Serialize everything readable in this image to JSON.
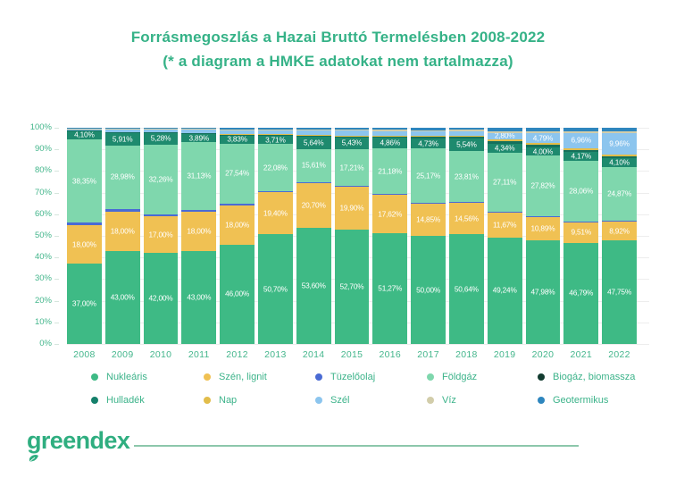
{
  "header": {
    "title": "Forrásmegoszlás a Hazai Bruttó Termelésben 2008-2022",
    "subtitle": "(* a diagram a HMKE adatokat nem tartalmazza)"
  },
  "brand": {
    "logo_text": "greendex"
  },
  "colors": {
    "title_green": "#35b287",
    "axis_green": "#44b68c",
    "legend_text_green": "#3cb38a",
    "gridline": "#ededed",
    "logo_green": "#2fae80",
    "footer_line": "#8cc7ab",
    "bar_label_text": "#ffffff"
  },
  "chart_data": {
    "type": "bar",
    "variant": "100-percent-stacked-column",
    "title": "Forrásmegoszlás a Hazai Bruttó Termelésben 2008-2022",
    "subtitle": "(* a diagram a HMKE adatokat nem tartalmazza)",
    "xlabel": "",
    "ylabel": "",
    "ylim": [
      0,
      100
    ],
    "ytick_labels": [
      "0%",
      "10%",
      "20%",
      "30%",
      "40%",
      "50%",
      "60%",
      "70%",
      "80%",
      "90%",
      "100%"
    ],
    "grid": "horizontal",
    "legend_position": "bottom",
    "categories": [
      "2008",
      "2009",
      "2010",
      "2011",
      "2012",
      "2013",
      "2014",
      "2015",
      "2016",
      "2017",
      "2018",
      "2019",
      "2020",
      "2021",
      "2022"
    ],
    "series": [
      {
        "name": "Nukleáris",
        "color": "#3eba85",
        "values": [
          37.0,
          43.0,
          42.0,
          43.0,
          46.0,
          50.7,
          53.6,
          52.7,
          51.27,
          50.0,
          50.64,
          49.24,
          47.98,
          46.79,
          47.75
        ],
        "data_labels": [
          "37,00%",
          "43,00%",
          "42,00%",
          "43,00%",
          "46,00%",
          "50,70%",
          "53,60%",
          "52,70%",
          "51,27%",
          "50,00%",
          "50,64%",
          "49,24%",
          "47,98%",
          "46,79%",
          "47,75%"
        ]
      },
      {
        "name": "Szén, lignit",
        "color": "#f0c153",
        "values": [
          18.0,
          18.0,
          17.0,
          18.0,
          18.0,
          19.4,
          20.7,
          19.9,
          17.62,
          14.85,
          14.56,
          11.67,
          10.89,
          9.51,
          8.92
        ],
        "data_labels": [
          "18,00%",
          "18,00%",
          "17,00%",
          "18,00%",
          "18,00%",
          "19,40%",
          "20,70%",
          "19,90%",
          "17,62%",
          "14,85%",
          "14,56%",
          "11,67%",
          "10,89%",
          "9,51%",
          "8,92%"
        ]
      },
      {
        "name": "Tüzelőolaj",
        "color": "#4a6bd4",
        "values_estimated": true,
        "values": [
          1.2,
          1.6,
          1.1,
          1.1,
          1.0,
          0.4,
          0.35,
          0.35,
          0.35,
          0.35,
          0.35,
          0.35,
          0.35,
          0.35,
          0.35
        ],
        "data_labels": [
          null,
          null,
          null,
          null,
          null,
          null,
          null,
          null,
          null,
          null,
          null,
          null,
          null,
          null,
          null
        ]
      },
      {
        "name": "Földgáz",
        "color": "#7fd7ad",
        "values": [
          38.35,
          28.98,
          32.26,
          31.13,
          27.54,
          22.08,
          15.61,
          17.21,
          21.18,
          25.17,
          23.81,
          27.11,
          27.82,
          28.06,
          24.87
        ],
        "data_labels": [
          "38,35%",
          "28,98%",
          "32,26%",
          "31,13%",
          "27,54%",
          "22,08%",
          "15,61%",
          "17,21%",
          "21,18%",
          "25,17%",
          "23,81%",
          "27,11%",
          "27,82%",
          "28,06%",
          "24,87%"
        ]
      },
      {
        "name": "Biogáz, biomassza",
        "color": "#1e8a6e",
        "legend_color": "#123c30",
        "values": [
          4.1,
          5.91,
          5.28,
          3.89,
          3.83,
          3.71,
          5.64,
          5.43,
          4.86,
          4.73,
          5.54,
          4.34,
          4.0,
          4.17,
          4.1
        ],
        "data_labels": [
          "4,10%",
          "5,91%",
          "5,28%",
          "3,89%",
          "3,83%",
          "3,71%",
          "5,64%",
          "5,43%",
          "4,86%",
          "4,73%",
          "5,54%",
          "4,34%",
          "4,00%",
          "4,17%",
          "4,10%"
        ]
      },
      {
        "name": "Hulladék",
        "color": "#15705c",
        "legend_color": "#15806b",
        "values_estimated": true,
        "values": [
          0.3,
          0.45,
          0.45,
          0.5,
          0.55,
          0.6,
          0.65,
          0.7,
          0.75,
          0.8,
          0.8,
          1.0,
          1.0,
          1.0,
          1.0
        ],
        "data_labels": [
          null,
          null,
          null,
          null,
          null,
          null,
          null,
          null,
          null,
          null,
          null,
          null,
          null,
          null,
          null
        ]
      },
      {
        "name": "Nap",
        "color": "#e2bd4a",
        "values_estimated": true,
        "values": [
          0.0,
          0.0,
          0.0,
          0.0,
          0.05,
          0.1,
          0.15,
          0.2,
          0.3,
          0.45,
          0.7,
          0.99,
          0.8,
          0.8,
          0.8
        ],
        "data_labels": [
          null,
          null,
          null,
          null,
          null,
          null,
          null,
          null,
          null,
          null,
          null,
          null,
          null,
          null,
          null
        ]
      },
      {
        "name": "Szél",
        "color": "#8cc5ee",
        "values_estimated_before_2019": true,
        "values": [
          0.45,
          1.2,
          1.05,
          1.5,
          1.9,
          1.9,
          2.2,
          2.3,
          2.25,
          2.2,
          2.1,
          2.8,
          4.79,
          6.96,
          9.96
        ],
        "data_labels": [
          null,
          null,
          null,
          null,
          null,
          null,
          null,
          null,
          null,
          null,
          null,
          "2,80%",
          "4,79%",
          "6,96%",
          "9,96%"
        ]
      },
      {
        "name": "Víz",
        "color": "#d2cdaa",
        "values_estimated": true,
        "values": [
          0.3,
          0.4,
          0.4,
          0.4,
          0.5,
          0.5,
          0.4,
          0.4,
          0.42,
          0.45,
          0.5,
          1.0,
          0.9,
          0.9,
          0.8
        ],
        "data_labels": [
          null,
          null,
          null,
          null,
          null,
          null,
          null,
          null,
          null,
          null,
          null,
          null,
          null,
          null,
          null
        ]
      },
      {
        "name": "Geotermikus",
        "color": "#2e86be",
        "values_estimated": true,
        "values": [
          0.3,
          0.46,
          0.46,
          0.48,
          0.63,
          0.61,
          0.7,
          0.81,
          1.0,
          1.0,
          1.0,
          1.5,
          1.47,
          1.46,
          1.45
        ],
        "data_labels": [
          null,
          null,
          null,
          null,
          null,
          null,
          null,
          null,
          null,
          null,
          null,
          null,
          null,
          null,
          null
        ]
      }
    ]
  }
}
